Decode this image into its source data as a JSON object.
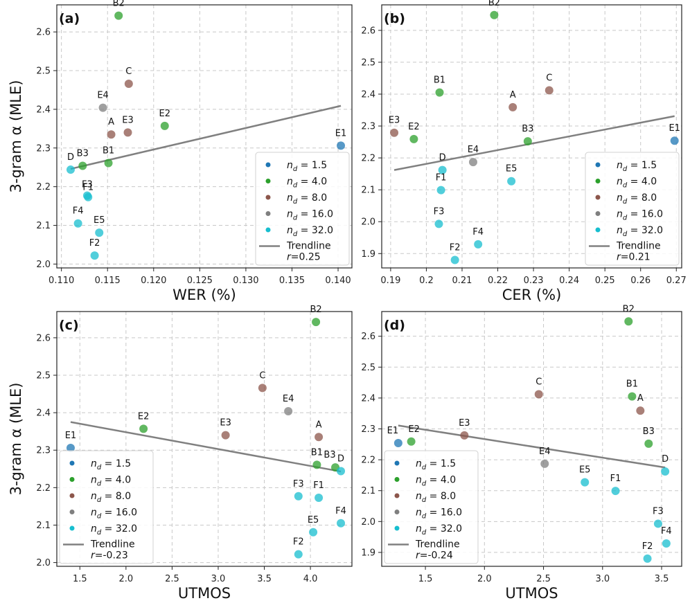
{
  "figure": {
    "y_label": "3-gram α (MLE)",
    "colors": {
      "1.5": "#1f77b4",
      "4.0": "#2ca02c",
      "8.0": "#8c564b",
      "16.0": "#7f7f7f",
      "32.0": "#17becf",
      "trend": "#808080"
    },
    "legend_items": [
      {
        "nd": "1.5",
        "label": "n_d = 1.5"
      },
      {
        "nd": "4.0",
        "label": "n_d = 4.0"
      },
      {
        "nd": "8.0",
        "label": "n_d = 8.0"
      },
      {
        "nd": "16.0",
        "label": "n_d = 16.0"
      },
      {
        "nd": "32.0",
        "label": "n_d = 32.0"
      }
    ],
    "legend_trend_label": "Trendline"
  },
  "chart_data": [
    {
      "type": "scatter",
      "panel": "(a)",
      "xlabel": "WER (%)",
      "ylabel": "3-gram α (MLE)",
      "xlim": [
        0.1095,
        0.1415
      ],
      "ylim": [
        1.99,
        2.67
      ],
      "xticks": [
        "0.110",
        "0.115",
        "0.120",
        "0.125",
        "0.130",
        "0.135",
        "0.140"
      ],
      "yticks": [
        "2.0",
        "2.1",
        "2.2",
        "2.3",
        "2.4",
        "2.5",
        "2.6"
      ],
      "r_label": "r=0.25",
      "trend": {
        "x": [
          0.111,
          0.1403
        ],
        "y": [
          2.246,
          2.409
        ]
      },
      "points": [
        {
          "label": "B2",
          "x": 0.1162,
          "y": 2.642,
          "nd": "4.0"
        },
        {
          "label": "C",
          "x": 0.1173,
          "y": 2.466,
          "nd": "8.0"
        },
        {
          "label": "E4",
          "x": 0.1145,
          "y": 2.404,
          "nd": "16.0"
        },
        {
          "label": "E2",
          "x": 0.1212,
          "y": 2.357,
          "nd": "4.0"
        },
        {
          "label": "A",
          "x": 0.1154,
          "y": 2.335,
          "nd": "8.0"
        },
        {
          "label": "E3",
          "x": 0.1172,
          "y": 2.34,
          "nd": "8.0"
        },
        {
          "label": "E1",
          "x": 0.1403,
          "y": 2.306,
          "nd": "1.5"
        },
        {
          "label": "B3",
          "x": 0.1123,
          "y": 2.254,
          "nd": "4.0"
        },
        {
          "label": "B1",
          "x": 0.1151,
          "y": 2.261,
          "nd": "4.0"
        },
        {
          "label": "D",
          "x": 0.111,
          "y": 2.244,
          "nd": "32.0"
        },
        {
          "label": "F3",
          "x": 0.1128,
          "y": 2.177,
          "nd": "32.0"
        },
        {
          "label": "F1",
          "x": 0.1129,
          "y": 2.173,
          "nd": "32.0"
        },
        {
          "label": "F4",
          "x": 0.1118,
          "y": 2.105,
          "nd": "32.0"
        },
        {
          "label": "E5",
          "x": 0.1141,
          "y": 2.081,
          "nd": "32.0"
        },
        {
          "label": "F2",
          "x": 0.1136,
          "y": 2.022,
          "nd": "32.0"
        }
      ]
    },
    {
      "type": "scatter",
      "panel": "(b)",
      "xlabel": "CER (%)",
      "ylabel": "",
      "xlim": [
        0.1875,
        0.2715
      ],
      "ylim": [
        1.855,
        2.68
      ],
      "xticks": [
        "0.19",
        "0.2",
        "0.21",
        "0.22",
        "0.23",
        "0.24",
        "0.25",
        "0.26",
        "0.27"
      ],
      "yticks": [
        "1.9",
        "2.0",
        "2.1",
        "2.2",
        "2.3",
        "2.4",
        "2.5",
        "2.6"
      ],
      "r_label": "r=0.21",
      "trend": {
        "x": [
          0.191,
          0.2695
        ],
        "y": [
          2.162,
          2.331
        ]
      },
      "points": [
        {
          "label": "B2",
          "x": 0.219,
          "y": 2.648,
          "nd": "4.0"
        },
        {
          "label": "B1",
          "x": 0.2037,
          "y": 2.405,
          "nd": "4.0"
        },
        {
          "label": "C",
          "x": 0.2344,
          "y": 2.412,
          "nd": "8.0"
        },
        {
          "label": "A",
          "x": 0.2242,
          "y": 2.359,
          "nd": "8.0"
        },
        {
          "label": "E3",
          "x": 0.191,
          "y": 2.279,
          "nd": "8.0"
        },
        {
          "label": "E2",
          "x": 0.1965,
          "y": 2.259,
          "nd": "4.0"
        },
        {
          "label": "B3",
          "x": 0.2284,
          "y": 2.252,
          "nd": "4.0"
        },
        {
          "label": "E1",
          "x": 0.2695,
          "y": 2.254,
          "nd": "1.5"
        },
        {
          "label": "E4",
          "x": 0.2131,
          "y": 2.187,
          "nd": "16.0"
        },
        {
          "label": "D",
          "x": 0.2045,
          "y": 2.162,
          "nd": "32.0"
        },
        {
          "label": "E5",
          "x": 0.2238,
          "y": 2.127,
          "nd": "32.0"
        },
        {
          "label": "F1",
          "x": 0.2041,
          "y": 2.099,
          "nd": "32.0"
        },
        {
          "label": "F3",
          "x": 0.2035,
          "y": 1.993,
          "nd": "32.0"
        },
        {
          "label": "F4",
          "x": 0.2145,
          "y": 1.929,
          "nd": "32.0"
        },
        {
          "label": "F2",
          "x": 0.208,
          "y": 1.88,
          "nd": "32.0"
        }
      ]
    },
    {
      "type": "scatter",
      "panel": "(c)",
      "xlabel": "UTMOS",
      "ylabel": "3-gram α (MLE)",
      "xlim": [
        1.25,
        4.45
      ],
      "ylim": [
        1.99,
        2.67
      ],
      "xticks": [
        "1.5",
        "2.0",
        "2.5",
        "3.0",
        "3.5",
        "4.0"
      ],
      "yticks": [
        "2.0",
        "2.1",
        "2.2",
        "2.3",
        "2.4",
        "2.5",
        "2.6"
      ],
      "r_label": "r=-0.23",
      "trend": {
        "x": [
          1.4,
          4.33
        ],
        "y": [
          2.375,
          2.243
        ]
      },
      "points": [
        {
          "label": "B2",
          "x": 4.06,
          "y": 2.642,
          "nd": "4.0"
        },
        {
          "label": "C",
          "x": 3.48,
          "y": 2.466,
          "nd": "8.0"
        },
        {
          "label": "E4",
          "x": 3.76,
          "y": 2.404,
          "nd": "16.0"
        },
        {
          "label": "E2",
          "x": 2.19,
          "y": 2.357,
          "nd": "4.0"
        },
        {
          "label": "E3",
          "x": 3.08,
          "y": 2.34,
          "nd": "8.0"
        },
        {
          "label": "A",
          "x": 4.09,
          "y": 2.335,
          "nd": "8.0"
        },
        {
          "label": "E1",
          "x": 1.4,
          "y": 2.306,
          "nd": "1.5"
        },
        {
          "label": "B1",
          "x": 4.07,
          "y": 2.261,
          "nd": "4.0"
        },
        {
          "label": "B3",
          "x": 4.27,
          "y": 2.254,
          "nd": "4.0"
        },
        {
          "label": "D",
          "x": 4.33,
          "y": 2.244,
          "nd": "32.0"
        },
        {
          "label": "F3",
          "x": 3.87,
          "y": 2.177,
          "nd": "32.0"
        },
        {
          "label": "F1",
          "x": 4.09,
          "y": 2.173,
          "nd": "32.0"
        },
        {
          "label": "F4",
          "x": 4.33,
          "y": 2.105,
          "nd": "32.0"
        },
        {
          "label": "E5",
          "x": 4.03,
          "y": 2.081,
          "nd": "32.0"
        },
        {
          "label": "F2",
          "x": 3.87,
          "y": 2.022,
          "nd": "32.0"
        }
      ]
    },
    {
      "type": "scatter",
      "panel": "(d)",
      "xlabel": "UTMOS",
      "ylabel": "",
      "xlim": [
        1.13,
        3.67
      ],
      "ylim": [
        1.855,
        2.68
      ],
      "xticks": [
        "1.5",
        "2.0",
        "2.5",
        "3.0",
        "3.5"
      ],
      "yticks": [
        "1.9",
        "2.0",
        "2.1",
        "2.2",
        "2.3",
        "2.4",
        "2.5",
        "2.6"
      ],
      "r_label": "r=-0.24",
      "trend": {
        "x": [
          1.27,
          3.53
        ],
        "y": [
          2.311,
          2.175
        ]
      },
      "points": [
        {
          "label": "B2",
          "x": 3.22,
          "y": 2.648,
          "nd": "4.0"
        },
        {
          "label": "C",
          "x": 2.46,
          "y": 2.412,
          "nd": "8.0"
        },
        {
          "label": "B1",
          "x": 3.25,
          "y": 2.405,
          "nd": "4.0"
        },
        {
          "label": "A",
          "x": 3.32,
          "y": 2.359,
          "nd": "8.0"
        },
        {
          "label": "E1",
          "x": 1.27,
          "y": 2.254,
          "nd": "1.5"
        },
        {
          "label": "E2",
          "x": 1.38,
          "y": 2.259,
          "nd": "4.0"
        },
        {
          "label": "E3",
          "x": 1.83,
          "y": 2.279,
          "nd": "8.0"
        },
        {
          "label": "B3",
          "x": 3.39,
          "y": 2.252,
          "nd": "4.0"
        },
        {
          "label": "E4",
          "x": 2.51,
          "y": 2.187,
          "nd": "16.0"
        },
        {
          "label": "D",
          "x": 3.53,
          "y": 2.162,
          "nd": "32.0"
        },
        {
          "label": "E5",
          "x": 2.85,
          "y": 2.127,
          "nd": "32.0"
        },
        {
          "label": "F1",
          "x": 3.11,
          "y": 2.099,
          "nd": "32.0"
        },
        {
          "label": "F3",
          "x": 3.47,
          "y": 1.993,
          "nd": "32.0"
        },
        {
          "label": "F4",
          "x": 3.54,
          "y": 1.929,
          "nd": "32.0"
        },
        {
          "label": "F2",
          "x": 3.38,
          "y": 1.88,
          "nd": "32.0"
        }
      ]
    }
  ]
}
